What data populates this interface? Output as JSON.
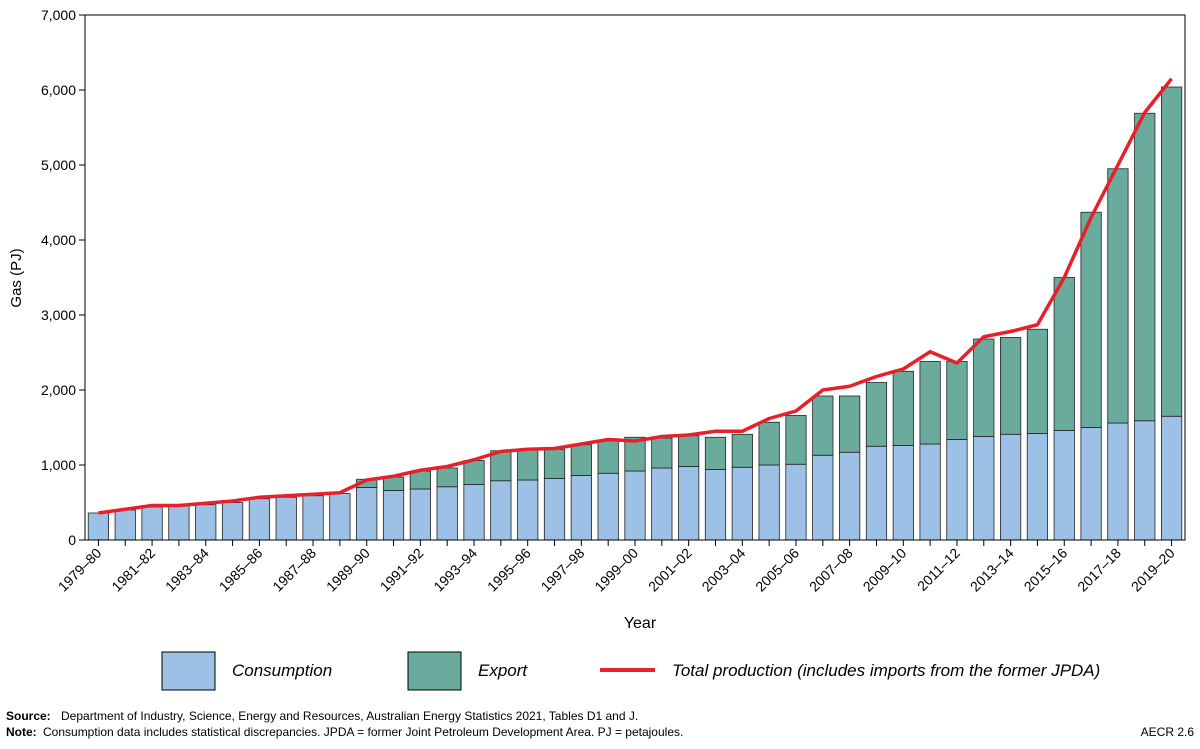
{
  "chart_data": {
    "type": "stacked-bar-line",
    "xlabel": "Year",
    "ylabel": "Gas (PJ)",
    "categories": [
      "1979–80",
      null,
      "1981–82",
      null,
      "1983–84",
      null,
      "1985–86",
      null,
      "1987–88",
      null,
      "1989–90",
      null,
      "1991–92",
      null,
      "1993–94",
      null,
      "1995–96",
      null,
      "1997–98",
      null,
      "1999–00",
      null,
      "2001–02",
      null,
      "2003–04",
      null,
      "2005–06",
      null,
      "2007–08",
      null,
      "2009–10",
      null,
      "2011–12",
      null,
      "2013–14",
      null,
      "2015–16",
      null,
      "2017–18",
      null,
      "2019–20"
    ],
    "series": [
      {
        "name": "Consumption",
        "color": "#9dc0e6",
        "kind": "bar",
        "values": [
          360,
          400,
          440,
          460,
          470,
          500,
          550,
          570,
          590,
          620,
          700,
          660,
          680,
          710,
          740,
          790,
          800,
          820,
          860,
          890,
          920,
          960,
          980,
          940,
          970,
          1000,
          1010,
          1130,
          1170,
          1250,
          1260,
          1280,
          1340,
          1380,
          1410,
          1420,
          1460,
          1500,
          1560,
          1590,
          1650
        ]
      },
      {
        "name": "Export",
        "color": "#6aab9e",
        "kind": "bar",
        "values": [
          0,
          0,
          0,
          0,
          0,
          0,
          0,
          0,
          0,
          0,
          110,
          180,
          240,
          250,
          320,
          400,
          400,
          390,
          410,
          430,
          450,
          400,
          410,
          430,
          440,
          570,
          650,
          790,
          750,
          850,
          990,
          1100,
          1040,
          1300,
          1290,
          1390,
          2040,
          2870,
          3390,
          4100,
          4390
        ]
      },
      {
        "name": "Total production (includes imports from the former JPDA)",
        "color": "#e8202a",
        "kind": "line",
        "values": [
          360,
          410,
          460,
          460,
          490,
          520,
          570,
          590,
          610,
          630,
          800,
          850,
          930,
          980,
          1070,
          1180,
          1210,
          1220,
          1280,
          1340,
          1320,
          1380,
          1400,
          1450,
          1450,
          1620,
          1720,
          2000,
          2050,
          2180,
          2280,
          2510,
          2360,
          2710,
          2780,
          2870,
          3500,
          4300,
          5000,
          5700,
          6150
        ]
      }
    ],
    "ylim": [
      0,
      7000
    ],
    "yticks": [
      0,
      {
        "value": 1000,
        "label": "1,000"
      },
      {
        "value": 2000,
        "label": "2,000"
      },
      {
        "value": 3000,
        "label": "3,000"
      },
      {
        "value": 4000,
        "label": "4,000"
      },
      {
        "value": 5000,
        "label": "5,000"
      },
      {
        "value": 6000,
        "label": "6,000"
      },
      {
        "value": 7000,
        "label": "7,000"
      }
    ],
    "grid": false
  },
  "footer": {
    "source_label": "Source:",
    "source_text": "Department of Industry, Science, Energy and Resources, Australian Energy Statistics 2021, Tables D1 and J.",
    "note_label": "Note:",
    "note_text": "Consumption data includes statistical discrepancies. JPDA = former Joint Petroleum Development Area.  PJ = petajoules.",
    "figure_id": "AECR 2.6"
  }
}
